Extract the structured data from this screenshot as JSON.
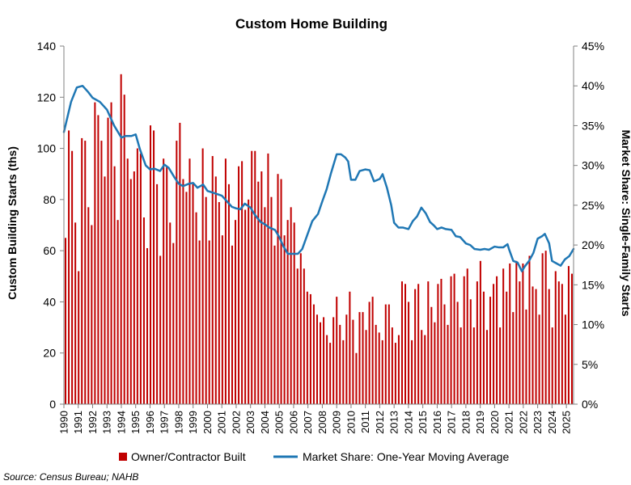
{
  "chart_data": {
    "type": "bar+line",
    "title": "Custom Home Building",
    "ylabel_left": "Custom Building Starts (ths)",
    "ylabel_right": "Market Share: Single-Family Starts",
    "y_left_range": [
      0,
      140
    ],
    "y_left_ticks": [
      "0",
      "20",
      "40",
      "60",
      "80",
      "100",
      "120",
      "140"
    ],
    "y_right_range": [
      0,
      45
    ],
    "y_right_ticks": [
      "0%",
      "5%",
      "10%",
      "15%",
      "20%",
      "25%",
      "30%",
      "35%",
      "40%",
      "45%"
    ],
    "x_start": 1990,
    "x_end": 2025.5,
    "x_tick_labels": [
      "1990",
      "1991",
      "1992",
      "1993",
      "1994",
      "1995",
      "1996",
      "1997",
      "1998",
      "1999",
      "2000",
      "2001",
      "2002",
      "2003",
      "2004",
      "2005",
      "2006",
      "2007",
      "2008",
      "2009",
      "2010",
      "2011",
      "2012",
      "2013",
      "2014",
      "2015",
      "2016",
      "2017",
      "2018",
      "2019",
      "2020",
      "2021",
      "2022",
      "2023",
      "2024",
      "2025"
    ],
    "grid": false,
    "legend_position": "bottom",
    "series": [
      {
        "name": "Owner/Contractor Built",
        "kind": "bar",
        "color": "#c00000",
        "frequency": "quarterly",
        "values": [
          65,
          107,
          99,
          71,
          52,
          104,
          103,
          77,
          70,
          118,
          113,
          103,
          89,
          112,
          118,
          93,
          72,
          129,
          121,
          96,
          88,
          91,
          100,
          98,
          73,
          61,
          109,
          107,
          86,
          58,
          96,
          93,
          71,
          63,
          103,
          110,
          88,
          83,
          96,
          86,
          75,
          64,
          100,
          81,
          64,
          97,
          89,
          79,
          66,
          96,
          86,
          62,
          72,
          93,
          95,
          76,
          80,
          99,
          99,
          87,
          91,
          77,
          98,
          81,
          62,
          90,
          88,
          66,
          72,
          77,
          71,
          53,
          59,
          53,
          44,
          43,
          39,
          35,
          32,
          34,
          27,
          24,
          34,
          42,
          31,
          25,
          35,
          44,
          33,
          20,
          36,
          36,
          29,
          40,
          42,
          31,
          28,
          25,
          39,
          39,
          30,
          24,
          27,
          48,
          47,
          40,
          25,
          45,
          47,
          29,
          27,
          48,
          38,
          32,
          47,
          49,
          39,
          31,
          50,
          51,
          40,
          30,
          50,
          53,
          41,
          30,
          48,
          56,
          44,
          29,
          42,
          47,
          50,
          30,
          53,
          44,
          55,
          36,
          56,
          48,
          55,
          37,
          58,
          46,
          45,
          35,
          59,
          60,
          45,
          30,
          52,
          48,
          47,
          35,
          54,
          51
        ]
      },
      {
        "name": "Market Share: One-Year Moving Average",
        "kind": "line",
        "color": "#1f77b4",
        "points": [
          [
            1990.0,
            34.2
          ],
          [
            1990.5,
            38.0
          ],
          [
            1990.9,
            39.8
          ],
          [
            1991.3,
            40.0
          ],
          [
            1991.7,
            39.2
          ],
          [
            1992.0,
            38.5
          ],
          [
            1992.5,
            38.0
          ],
          [
            1993.0,
            37.0
          ],
          [
            1993.5,
            35.0
          ],
          [
            1994.0,
            33.5
          ],
          [
            1994.3,
            33.7
          ],
          [
            1994.7,
            33.7
          ],
          [
            1995.0,
            33.9
          ],
          [
            1995.3,
            32.0
          ],
          [
            1995.7,
            30.0
          ],
          [
            1996.0,
            29.5
          ],
          [
            1996.3,
            29.6
          ],
          [
            1996.7,
            29.3
          ],
          [
            1997.0,
            30.1
          ],
          [
            1997.3,
            29.7
          ],
          [
            1997.7,
            28.5
          ],
          [
            1998.0,
            27.7
          ],
          [
            1998.3,
            27.4
          ],
          [
            1998.7,
            27.7
          ],
          [
            1999.0,
            27.8
          ],
          [
            1999.3,
            27.2
          ],
          [
            1999.7,
            27.6
          ],
          [
            2000.0,
            26.8
          ],
          [
            2000.5,
            26.5
          ],
          [
            2001.0,
            26.2
          ],
          [
            2001.3,
            25.6
          ],
          [
            2001.7,
            24.8
          ],
          [
            2002.0,
            24.6
          ],
          [
            2002.3,
            24.5
          ],
          [
            2002.6,
            25.2
          ],
          [
            2003.0,
            24.7
          ],
          [
            2003.3,
            23.8
          ],
          [
            2003.7,
            22.9
          ],
          [
            2004.0,
            22.6
          ],
          [
            2004.3,
            22.2
          ],
          [
            2004.7,
            21.9
          ],
          [
            2005.0,
            21.0
          ],
          [
            2005.3,
            19.8
          ],
          [
            2005.6,
            18.9
          ],
          [
            2006.0,
            18.9
          ],
          [
            2006.3,
            18.9
          ],
          [
            2006.6,
            19.5
          ],
          [
            2007.0,
            21.5
          ],
          [
            2007.3,
            23.0
          ],
          [
            2007.7,
            23.9
          ],
          [
            2008.0,
            25.5
          ],
          [
            2008.3,
            27.0
          ],
          [
            2008.6,
            29.0
          ],
          [
            2009.0,
            31.4
          ],
          [
            2009.3,
            31.4
          ],
          [
            2009.6,
            31.0
          ],
          [
            2009.8,
            30.5
          ],
          [
            2010.0,
            28.2
          ],
          [
            2010.3,
            28.2
          ],
          [
            2010.6,
            29.3
          ],
          [
            2011.0,
            29.5
          ],
          [
            2011.3,
            29.4
          ],
          [
            2011.6,
            28.0
          ],
          [
            2012.0,
            28.3
          ],
          [
            2012.2,
            28.9
          ],
          [
            2012.5,
            27.2
          ],
          [
            2012.8,
            25.0
          ],
          [
            2013.0,
            22.8
          ],
          [
            2013.3,
            22.2
          ],
          [
            2013.6,
            22.2
          ],
          [
            2014.0,
            22.0
          ],
          [
            2014.3,
            23.0
          ],
          [
            2014.6,
            23.6
          ],
          [
            2014.9,
            24.7
          ],
          [
            2015.2,
            24.0
          ],
          [
            2015.5,
            22.9
          ],
          [
            2015.8,
            22.4
          ],
          [
            2016.0,
            22.0
          ],
          [
            2016.3,
            22.2
          ],
          [
            2016.6,
            22.0
          ],
          [
            2017.0,
            21.9
          ],
          [
            2017.3,
            21.1
          ],
          [
            2017.6,
            21.0
          ],
          [
            2018.0,
            20.2
          ],
          [
            2018.3,
            20.0
          ],
          [
            2018.6,
            19.5
          ],
          [
            2019.0,
            19.4
          ],
          [
            2019.3,
            19.5
          ],
          [
            2019.6,
            19.4
          ],
          [
            2020.0,
            19.8
          ],
          [
            2020.3,
            19.7
          ],
          [
            2020.6,
            19.7
          ],
          [
            2020.9,
            20.1
          ],
          [
            2021.0,
            19.5
          ],
          [
            2021.3,
            18.0
          ],
          [
            2021.6,
            17.8
          ],
          [
            2021.9,
            16.7
          ],
          [
            2022.1,
            17.3
          ],
          [
            2022.4,
            18.0
          ],
          [
            2022.7,
            19.0
          ],
          [
            2023.0,
            20.8
          ],
          [
            2023.3,
            21.1
          ],
          [
            2023.5,
            21.4
          ],
          [
            2023.8,
            20.2
          ],
          [
            2024.0,
            18.0
          ],
          [
            2024.3,
            17.7
          ],
          [
            2024.6,
            17.4
          ],
          [
            2024.9,
            18.2
          ],
          [
            2025.2,
            18.6
          ],
          [
            2025.5,
            19.5
          ]
        ]
      }
    ]
  },
  "footer": {
    "source": "Source: Census Bureau; NAHB"
  }
}
